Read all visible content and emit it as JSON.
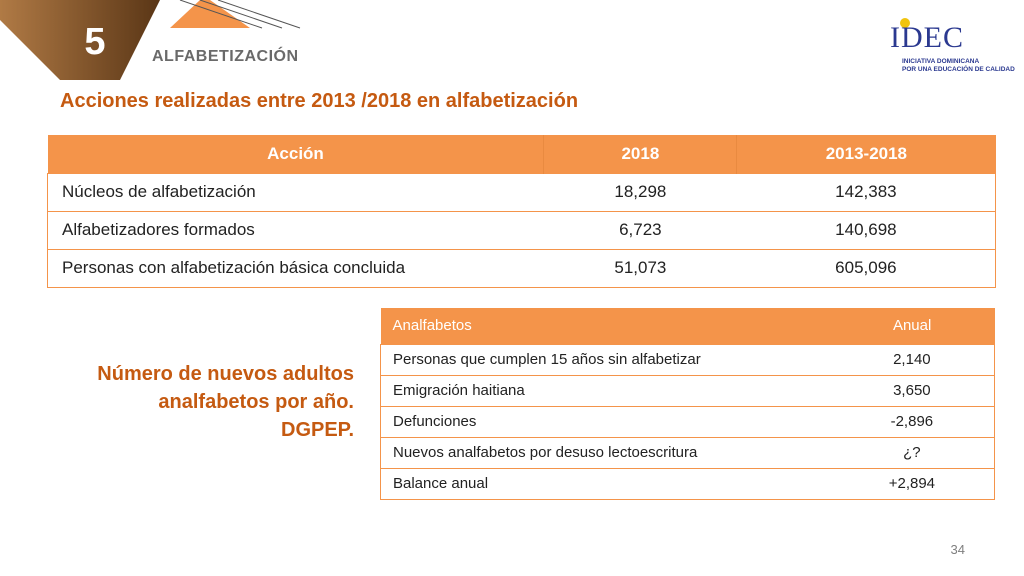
{
  "header": {
    "section_number": "5",
    "section_title": "ALFABETIZACIÓN",
    "accent_color": "#f4944a",
    "corner_dark_color": "#7a4a1e"
  },
  "logo": {
    "mark": "IDEC",
    "line1": "INICIATIVA DOMINICANA",
    "line2": "POR UNA EDUCACIÓN DE CALIDAD"
  },
  "main_title": "Acciones realizadas entre 2013 /2018 en alfabetización",
  "actions_table": {
    "headers": [
      "Acción",
      "2018",
      "2013-2018"
    ],
    "rows": [
      [
        "Núcleos de alfabetización",
        "18,298",
        "142,383"
      ],
      [
        "Alfabetizadores formados",
        "6,723",
        "140,698"
      ],
      [
        "Personas con alfabetización básica concluida",
        "51,073",
        "605,096"
      ]
    ]
  },
  "side_caption": {
    "line1": "Número de nuevos adultos",
    "line2": "analfabetos por año.",
    "line3": "DGPEP."
  },
  "illiterates_table": {
    "headers": [
      "Analfabetos",
      "Anual"
    ],
    "rows": [
      [
        "Personas que cumplen 15 años sin alfabetizar",
        "2,140"
      ],
      [
        "Emigración haitiana",
        "3,650"
      ],
      [
        "Defunciones",
        "-2,896"
      ],
      [
        "Nuevos analfabetos por desuso lectoescritura",
        "¿?"
      ],
      [
        "Balance anual",
        "+2,894"
      ]
    ]
  },
  "page_number": "34"
}
